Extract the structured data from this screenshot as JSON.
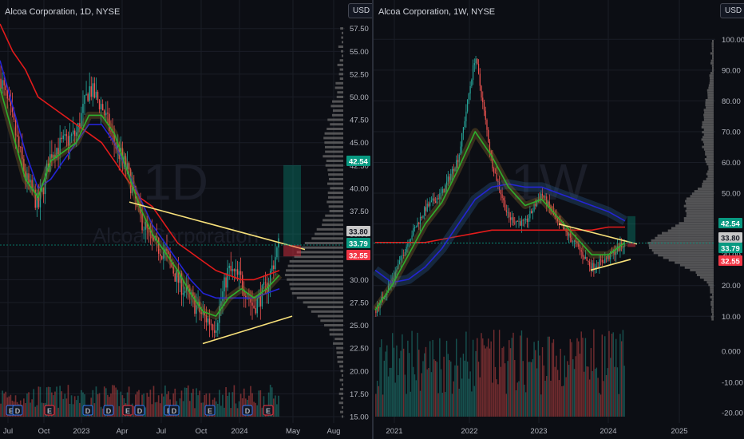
{
  "colors": {
    "background": "#0c0e14",
    "grid": "#1a1d26",
    "up": "#26a69a",
    "down": "#ef5350",
    "ma_red": "#e31b1b",
    "ma_blue": "#2424d6",
    "ma_green": "#2db02d",
    "trendline": "#f7e07a",
    "volume_profile": "#6b6b6b"
  },
  "charts": {
    "left": {
      "title": "Alcoa Corporation, 1D, NYSE",
      "currency_button": "USD",
      "watermark": "1D",
      "watermark_sub": "Alcoa Corporation",
      "y_ticks": [
        "57.50",
        "55.00",
        "52.50",
        "50.00",
        "47.50",
        "45.00",
        "42.50",
        "40.00",
        "37.50",
        "35.00",
        "32.50",
        "30.00",
        "27.50",
        "25.00",
        "22.50",
        "20.00",
        "17.50",
        "15.00"
      ],
      "x_labels": [
        "Jul",
        "Oct",
        "2023",
        "Apr",
        "Jul",
        "Oct",
        "2024",
        "May",
        "Aug"
      ],
      "price_tags": [
        {
          "label": "42.54",
          "color": "#089981",
          "text_color": "#ffffff"
        },
        {
          "label": "33.80",
          "color": "#c8c8c8",
          "text_color": "#131722"
        },
        {
          "label": "33.79",
          "color": "#089981",
          "text_color": "#ffffff"
        },
        {
          "label": "32.55",
          "color": "#f23645",
          "text_color": "#ffffff"
        }
      ],
      "event_markers": [
        "E",
        "D",
        "E",
        "D",
        "D",
        "E",
        "D",
        "E",
        "D",
        "E",
        "D",
        "E"
      ]
    },
    "right": {
      "title": "Alcoa Corporation, 1W, NYSE",
      "currency_button": "USD",
      "watermark": "1W",
      "y_ticks": [
        "100.00",
        "90.00",
        "80.00",
        "70.00",
        "60.00",
        "50.00",
        "40.00",
        "30.00",
        "20.00",
        "10.00"
      ],
      "volume_ticks": [
        "0.000",
        "-10.00",
        "-20.00"
      ],
      "x_labels": [
        "2021",
        "2022",
        "2023",
        "2024",
        "2025"
      ],
      "price_tags": [
        {
          "label": "42.54",
          "color": "#089981",
          "text_color": "#ffffff"
        },
        {
          "label": "33.80",
          "color": "#c8c8c8",
          "text_color": "#131722"
        },
        {
          "label": "33.79",
          "color": "#089981",
          "text_color": "#ffffff"
        },
        {
          "label": "32.55",
          "color": "#f23645",
          "text_color": "#ffffff"
        }
      ]
    }
  },
  "chart_data": [
    {
      "type": "candlestick",
      "title": "Alcoa Corporation, 1D, NYSE",
      "ylim": [
        15,
        58
      ],
      "x_labels": [
        "Jul",
        "Oct",
        "2023",
        "Apr",
        "Jul",
        "Oct",
        "2024",
        "May",
        "Aug"
      ],
      "price_series": [
        [
          "Jul",
          52
        ],
        [
          "Aug",
          47
        ],
        [
          "Sep",
          41
        ],
        [
          "Oct",
          38
        ],
        [
          "Nov",
          44
        ],
        [
          "Dec",
          45
        ],
        [
          "2023",
          46
        ],
        [
          "Jan",
          51
        ],
        [
          "Feb",
          49
        ],
        [
          "Mar",
          45
        ],
        [
          "Apr",
          42
        ],
        [
          "May",
          37
        ],
        [
          "Jun",
          34
        ],
        [
          "Jul",
          33
        ],
        [
          "Aug",
          30
        ],
        [
          "Sep",
          28
        ],
        [
          "Oct",
          26
        ],
        [
          "Nov",
          25
        ],
        [
          "Dec",
          31
        ],
        [
          "2024",
          30
        ],
        [
          "Feb",
          27
        ],
        [
          "Mar",
          29
        ],
        [
          "Apr",
          33.79
        ]
      ],
      "moving_averages": [
        {
          "color": "red",
          "values": [
            58,
            55,
            53,
            50,
            49,
            48,
            47,
            46,
            45,
            43,
            41,
            39,
            38,
            36,
            34,
            33,
            32,
            31,
            30.5,
            30,
            30,
            30.5,
            31
          ]
        },
        {
          "color": "blue",
          "values": [
            54,
            49,
            44,
            40,
            41,
            43,
            45,
            47,
            47,
            45,
            42,
            39,
            36,
            34,
            32,
            30,
            28.5,
            28,
            28,
            28,
            28,
            28.5,
            29
          ]
        },
        {
          "color": "green",
          "values": [
            51,
            46,
            41,
            39,
            43,
            44,
            45,
            48,
            48,
            46,
            42,
            38,
            35,
            33,
            31,
            28.5,
            26.5,
            26,
            28,
            29,
            28,
            29,
            30.5
          ]
        }
      ],
      "trendlines": [
        {
          "from": [
            "Apr",
            38.5
          ],
          "to": [
            "Apr 2024",
            33.3
          ]
        },
        {
          "from": [
            "Oct",
            23
          ],
          "to": [
            "Apr 2024",
            26
          ]
        }
      ],
      "last_price": 33.79,
      "levels": [
        42.54,
        33.8,
        33.79,
        32.55
      ]
    },
    {
      "type": "candlestick",
      "title": "Alcoa Corporation, 1W, NYSE",
      "ylim": [
        8,
        105
      ],
      "x_labels": [
        "2021",
        "2022",
        "2023",
        "2024",
        "2025"
      ],
      "price_series": [
        [
          "2020-10",
          12
        ],
        [
          "2021-01",
          22
        ],
        [
          "2021-04",
          35
        ],
        [
          "2021-07",
          45
        ],
        [
          "2021-10",
          50
        ],
        [
          "2022-01",
          62
        ],
        [
          "2022-03",
          95
        ],
        [
          "2022-05",
          60
        ],
        [
          "2022-07",
          42
        ],
        [
          "2022-10",
          40
        ],
        [
          "2023-01",
          50
        ],
        [
          "2023-04",
          40
        ],
        [
          "2023-07",
          34
        ],
        [
          "2023-10",
          26
        ],
        [
          "2024-01",
          29
        ],
        [
          "2024-04",
          33.79
        ]
      ],
      "moving_averages": [
        {
          "color": "red",
          "values": [
            34,
            34,
            34,
            34,
            35,
            36,
            37,
            38,
            38,
            38,
            38,
            38,
            38,
            38,
            39,
            39
          ]
        },
        {
          "color": "blue",
          "values": [
            25,
            21,
            22,
            26,
            32,
            40,
            48,
            52,
            53,
            52,
            52,
            50,
            48,
            46,
            44,
            41
          ]
        },
        {
          "color": "green",
          "values": [
            12,
            20,
            30,
            40,
            47,
            58,
            70,
            62,
            52,
            46,
            48,
            42,
            36,
            30,
            30,
            34
          ]
        }
      ],
      "trendlines": [
        {
          "from": [
            "2023-01",
            40
          ],
          "to": [
            "2024-04",
            33.5
          ]
        },
        {
          "from": [
            "2023-10",
            25
          ],
          "to": [
            "2024-04",
            28.5
          ]
        }
      ],
      "volume_ylim": [
        -22,
        12
      ],
      "last_price": 33.79,
      "levels": [
        42.54,
        33.8,
        33.79,
        32.55
      ]
    }
  ]
}
